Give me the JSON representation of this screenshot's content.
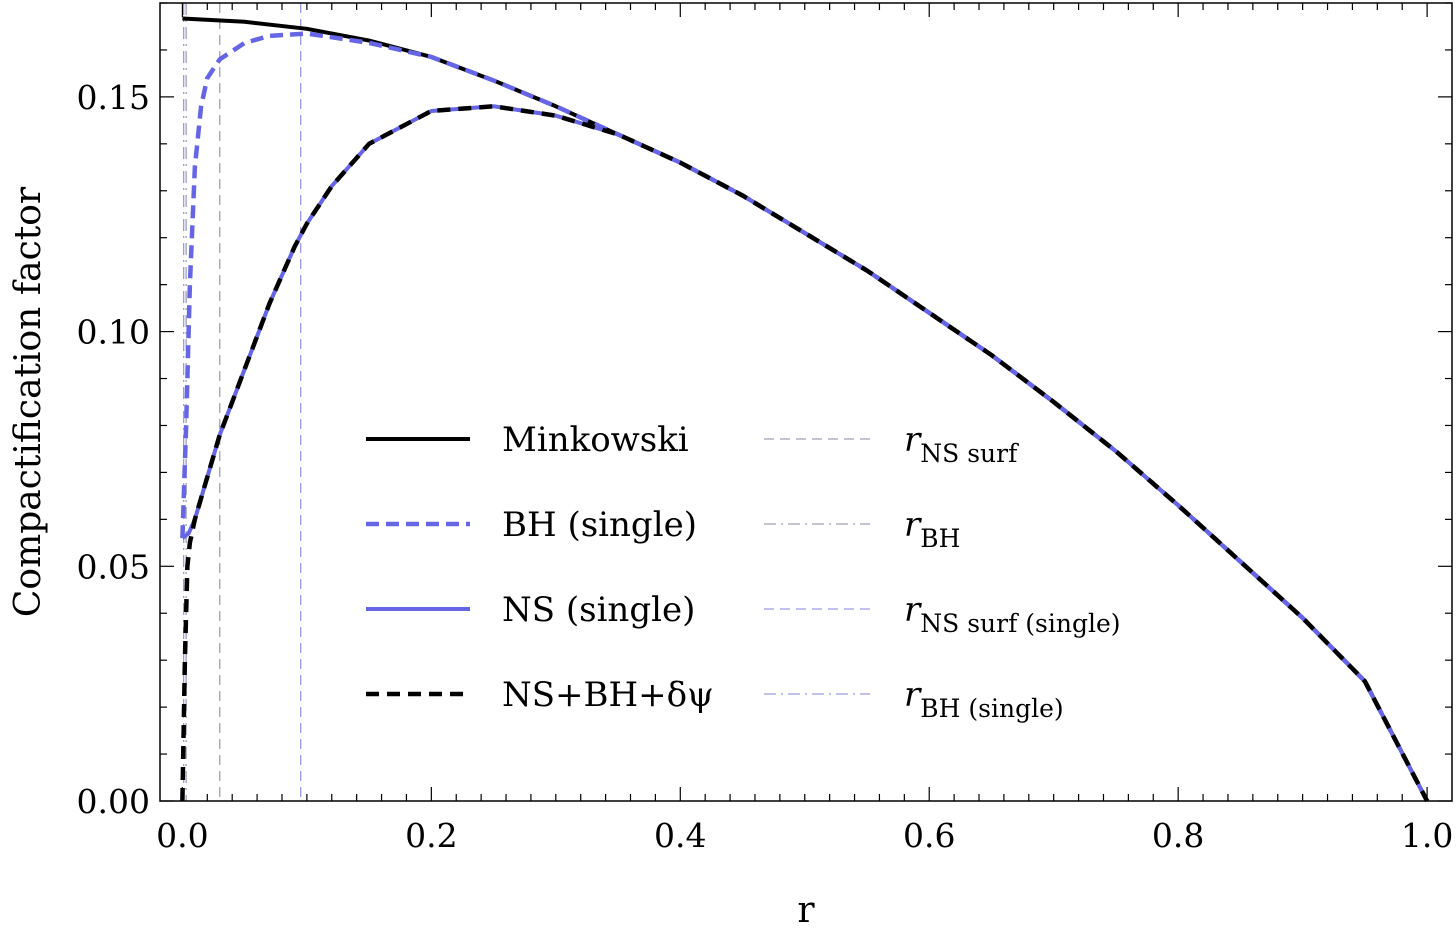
{
  "chart_data": {
    "type": "line",
    "xlabel": "r",
    "ylabel": "Compactification factor",
    "xlim": [
      -0.018,
      1.02
    ],
    "ylim": [
      0,
      0.17
    ],
    "x_ticks": [
      0.0,
      0.2,
      0.4,
      0.6,
      0.8,
      1.0
    ],
    "x_tick_labels": [
      "0.0",
      "0.2",
      "0.4",
      "0.6",
      "0.8",
      "1.0"
    ],
    "y_ticks": [
      0.0,
      0.05,
      0.1,
      0.15
    ],
    "y_tick_labels": [
      "0.00",
      "0.05",
      "0.10",
      "0.15"
    ],
    "grid": false,
    "legend_placement": "center-left",
    "colors": {
      "black": "#000000",
      "blue": "#6565e6",
      "gray": "#a0a0b4",
      "light_blue": "#9a9aea"
    },
    "series": [
      {
        "name": "Minkowski",
        "style": "solid",
        "color": "#000000",
        "x": [
          0.0,
          0.05,
          0.1,
          0.15,
          0.2,
          0.25,
          0.3,
          0.35,
          0.4,
          0.45,
          0.5,
          0.55,
          0.6,
          0.65,
          0.7,
          0.75,
          0.8,
          0.85,
          0.9,
          0.95,
          1.0
        ],
        "y": [
          0.1667,
          0.166,
          0.1645,
          0.162,
          0.1585,
          0.1535,
          0.148,
          0.142,
          0.136,
          0.129,
          0.121,
          0.113,
          0.104,
          0.095,
          0.085,
          0.0745,
          0.063,
          0.051,
          0.039,
          0.0255,
          0.0
        ]
      },
      {
        "name": "BH (single)",
        "style": "dashed",
        "color": "#6565e6",
        "x": [
          0.0,
          0.003,
          0.006,
          0.01,
          0.015,
          0.02,
          0.03,
          0.05,
          0.07,
          0.1,
          0.15,
          0.2,
          0.25,
          0.3,
          0.35,
          0.4,
          0.45,
          0.5,
          0.55,
          0.6,
          0.65,
          0.7,
          0.75,
          0.8,
          0.85,
          0.9,
          0.95,
          1.0
        ],
        "y": [
          0.056,
          0.08,
          0.11,
          0.135,
          0.148,
          0.154,
          0.158,
          0.1615,
          0.163,
          0.1635,
          0.1615,
          0.1585,
          0.1535,
          0.148,
          0.142,
          0.136,
          0.129,
          0.121,
          0.113,
          0.104,
          0.095,
          0.085,
          0.0745,
          0.063,
          0.051,
          0.039,
          0.0255,
          0.0
        ]
      },
      {
        "name": "NS (single)",
        "style": "solid",
        "color": "#6565e6",
        "x": [
          0.0,
          0.005,
          0.01,
          0.02,
          0.03,
          0.05,
          0.07,
          0.09,
          0.1,
          0.12,
          0.15,
          0.2,
          0.25,
          0.3,
          0.35,
          0.4,
          0.45,
          0.5,
          0.55,
          0.6,
          0.65,
          0.7,
          0.75,
          0.8,
          0.85,
          0.9,
          0.95,
          1.0
        ],
        "y": [
          0.056,
          0.057,
          0.06,
          0.069,
          0.078,
          0.092,
          0.106,
          0.118,
          0.123,
          0.131,
          0.14,
          0.147,
          0.148,
          0.146,
          0.142,
          0.136,
          0.129,
          0.121,
          0.113,
          0.104,
          0.095,
          0.085,
          0.0745,
          0.063,
          0.051,
          0.039,
          0.0255,
          0.0
        ]
      },
      {
        "name": "NS+BH+δψ",
        "style": "dashed",
        "color": "#000000",
        "x": [
          0.0,
          0.002,
          0.004,
          0.006,
          0.01,
          0.02,
          0.03,
          0.05,
          0.07,
          0.09,
          0.1,
          0.12,
          0.15,
          0.2,
          0.25,
          0.3,
          0.35,
          0.4,
          0.45,
          0.5,
          0.55,
          0.6,
          0.65,
          0.7,
          0.75,
          0.8,
          0.85,
          0.9,
          0.95,
          1.0
        ],
        "y": [
          0.0,
          0.03,
          0.05,
          0.055,
          0.06,
          0.069,
          0.078,
          0.092,
          0.106,
          0.118,
          0.123,
          0.131,
          0.14,
          0.147,
          0.148,
          0.146,
          0.142,
          0.136,
          0.129,
          0.121,
          0.113,
          0.104,
          0.095,
          0.085,
          0.0745,
          0.063,
          0.051,
          0.039,
          0.0255,
          0.0
        ]
      }
    ],
    "vertical_lines": [
      {
        "name": "r_NS surf",
        "x": 0.03,
        "style": "dashed",
        "color": "#a0a0b4"
      },
      {
        "name": "r_BH",
        "x": 0.003,
        "style": "dashdot",
        "color": "#a0a0b4"
      },
      {
        "name": "r_NS surf (single)",
        "x": 0.095,
        "style": "dashed",
        "color": "#9a9aea"
      },
      {
        "name": "r_BH (single)",
        "x": 0.001,
        "style": "dashdot",
        "color": "#9a9aea"
      }
    ],
    "legend_left": [
      {
        "label": "Minkowski"
      },
      {
        "label": "BH (single)"
      },
      {
        "label": "NS (single)"
      },
      {
        "label": "NS+BH+δψ"
      }
    ],
    "legend_right": [
      {
        "main": "r",
        "sub": "NS surf"
      },
      {
        "main": "r",
        "sub": "BH"
      },
      {
        "main": "r",
        "sub": "NS surf (single)"
      },
      {
        "main": "r",
        "sub": "BH (single)"
      }
    ]
  }
}
